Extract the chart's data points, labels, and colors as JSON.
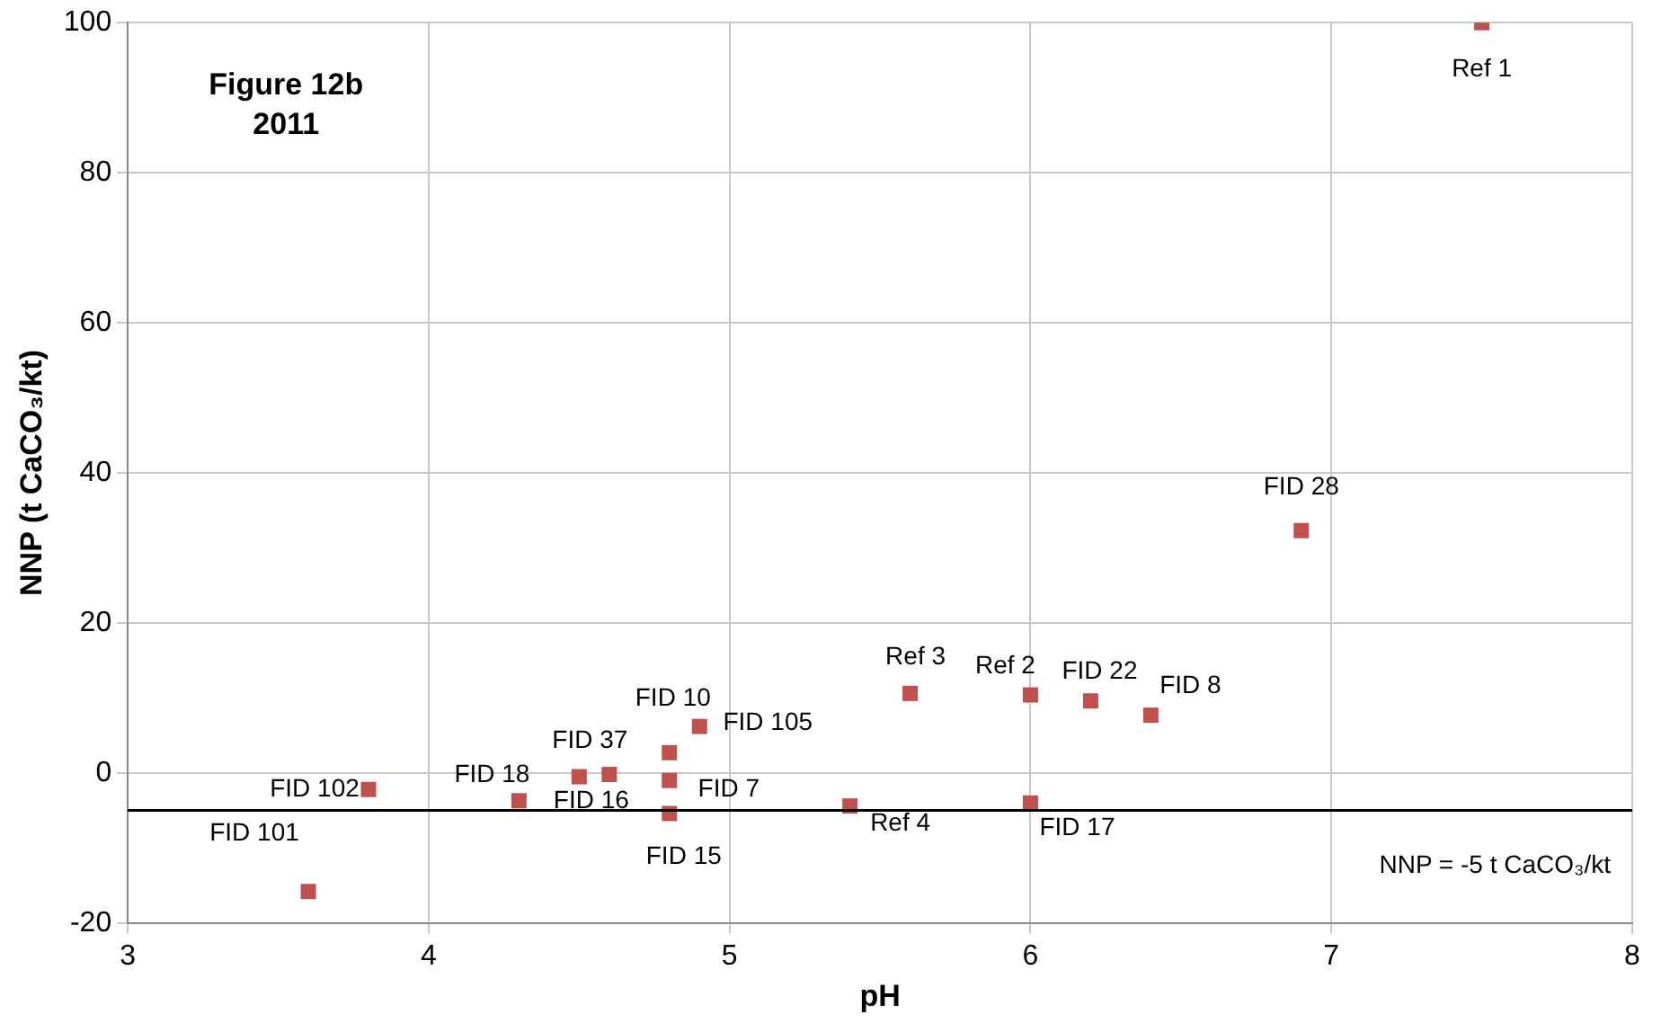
{
  "chart_data": {
    "type": "scatter",
    "xlabel": "pH",
    "ylabel": "NNP (t CaCO₃/kt)",
    "x": [
      7.5,
      6.9,
      6.4,
      6.2,
      6.0,
      5.6,
      6.0,
      5.4,
      4.9,
      4.8,
      4.8,
      4.8,
      4.6,
      4.5,
      4.3,
      3.8,
      3.6
    ],
    "series": [
      {
        "color": "#c0504d",
        "values": [
          100,
          32.3,
          7.7,
          9.6,
          10.4,
          10.6,
          -4,
          -4.4,
          6.2,
          2.7,
          -1,
          -5.4,
          -0.2,
          -0.5,
          -3.7,
          -2.2,
          -15.8
        ]
      }
    ],
    "xlim": [
      3,
      8
    ],
    "xticks": [
      3,
      4,
      5,
      6,
      7,
      8
    ],
    "ylim": [
      -20,
      100
    ],
    "yticks": [
      -20,
      0,
      20,
      40,
      60,
      80,
      100
    ],
    "grid": true,
    "legend": false,
    "marker": "square",
    "ref_lines": [
      {
        "axis": "y",
        "value": -5,
        "label": "NNP = -5 t CaCO₃/kt",
        "color": "#000000"
      }
    ],
    "annotations": [
      "Figure 12b",
      "2011",
      {
        "text": "Ref 1",
        "x": 7.5,
        "y": 100
      },
      {
        "text": "FID 28",
        "x": 6.9,
        "y": 32.3
      },
      {
        "text": "FID 8",
        "x": 6.4,
        "y": 7.7
      },
      {
        "text": "FID 22",
        "x": 6.2,
        "y": 9.6
      },
      {
        "text": "Ref 2",
        "x": 6.0,
        "y": 10.4
      },
      {
        "text": "Ref 3",
        "x": 5.6,
        "y": 10.6
      },
      {
        "text": "FID 17",
        "x": 6.0,
        "y": -4
      },
      {
        "text": "Ref 4",
        "x": 5.4,
        "y": -4.4
      },
      {
        "text": "FID 105",
        "x": 4.9,
        "y": 6.2
      },
      {
        "text": "FID 10",
        "x": 4.8,
        "y": 2.7
      },
      {
        "text": "FID 7",
        "x": 4.8,
        "y": -1
      },
      {
        "text": "FID 15",
        "x": 4.8,
        "y": -5.4
      },
      {
        "text": "FID 16",
        "x": 4.6,
        "y": -0.2
      },
      {
        "text": "FID 37",
        "x": 4.5,
        "y": -0.5
      },
      {
        "text": "FID 18",
        "x": 4.3,
        "y": -3.7
      },
      {
        "text": "FID 102",
        "x": 3.8,
        "y": -2.2
      },
      {
        "text": "FID 101",
        "x": 3.6,
        "y": -15.8
      }
    ]
  }
}
